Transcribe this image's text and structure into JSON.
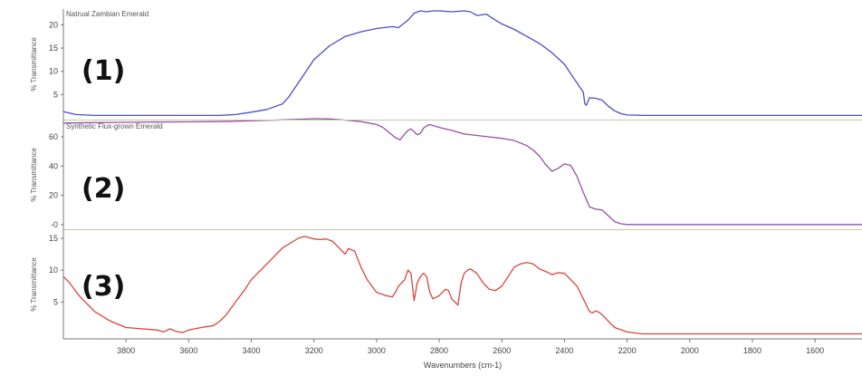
{
  "chart_data": [
    {
      "type": "line",
      "panel_label": "(1)",
      "title": "Natrual Zambian Emerald",
      "ylabel": "% Transmittance",
      "yticks": [
        5,
        10,
        15,
        20
      ],
      "ylim": [
        0,
        23
      ],
      "xlim": [
        4000,
        1450
      ],
      "series": [
        {
          "color": "#4c4ccc",
          "x": [
            4000,
            3960,
            3900,
            3800,
            3700,
            3600,
            3500,
            3450,
            3400,
            3350,
            3300,
            3280,
            3250,
            3200,
            3150,
            3100,
            3050,
            3000,
            2950,
            2930,
            2900,
            2880,
            2860,
            2840,
            2820,
            2800,
            2760,
            2720,
            2700,
            2680,
            2650,
            2620,
            2600,
            2560,
            2520,
            2480,
            2440,
            2400,
            2380,
            2360,
            2350,
            2340,
            2335,
            2330,
            2320,
            2300,
            2280,
            2260,
            2240,
            2220,
            2200,
            2150,
            2100,
            2000,
            1900,
            1800,
            1700,
            1600,
            1450
          ],
          "y": [
            1.3,
            0.7,
            0.5,
            0.5,
            0.5,
            0.5,
            0.5,
            0.7,
            1.2,
            1.8,
            3.0,
            4.5,
            7.5,
            12.5,
            15.5,
            17.5,
            18.5,
            19.2,
            19.6,
            19.4,
            21.0,
            22.5,
            23.0,
            22.8,
            23.0,
            23.0,
            22.8,
            23.0,
            22.8,
            22.0,
            22.3,
            21.0,
            20.2,
            19.0,
            17.5,
            16.0,
            14.0,
            11.5,
            9.5,
            7.5,
            6.5,
            5.5,
            3.0,
            2.7,
            4.3,
            4.2,
            3.8,
            2.5,
            1.5,
            0.9,
            0.6,
            0.5,
            0.5,
            0.5,
            0.5,
            0.5,
            0.5,
            0.5,
            0.5
          ]
        }
      ]
    },
    {
      "type": "line",
      "panel_label": "(2)",
      "title": "Synthetic Flux-grown Emerald",
      "ylabel": "% Transmittance",
      "yticks": [
        0,
        20,
        40,
        60
      ],
      "ytick_labels": [
        "-0",
        "20",
        "40",
        "60"
      ],
      "ylim": [
        -2,
        70
      ],
      "xlim": [
        4000,
        1450
      ],
      "series": [
        {
          "color": "#9a4ea6",
          "x": [
            4000,
            3900,
            3800,
            3700,
            3600,
            3500,
            3400,
            3300,
            3200,
            3150,
            3100,
            3050,
            3000,
            2980,
            2960,
            2940,
            2925,
            2910,
            2900,
            2890,
            2880,
            2870,
            2860,
            2850,
            2840,
            2830,
            2800,
            2760,
            2720,
            2680,
            2640,
            2600,
            2560,
            2520,
            2500,
            2480,
            2460,
            2440,
            2420,
            2400,
            2380,
            2360,
            2340,
            2320,
            2300,
            2280,
            2260,
            2240,
            2220,
            2200,
            2150,
            2100,
            2000,
            1900,
            1800,
            1700,
            1600,
            1450
          ],
          "y": [
            69.5,
            69.8,
            70.0,
            70.2,
            70.3,
            70.5,
            71.0,
            71.7,
            72.5,
            72.3,
            71.5,
            70.5,
            68.5,
            66.5,
            63.0,
            59.5,
            58.0,
            62.0,
            64.5,
            65.5,
            63.5,
            61.5,
            62.5,
            66.0,
            67.5,
            68.5,
            66.5,
            64.5,
            62.0,
            61.0,
            60.0,
            59.0,
            57.5,
            54.0,
            51.0,
            47.0,
            41.0,
            36.5,
            38.5,
            41.5,
            40.5,
            33.0,
            22.0,
            12.0,
            10.5,
            10.0,
            6.0,
            2.0,
            0.5,
            0.0,
            0.0,
            0.0,
            0.0,
            0.0,
            0.0,
            0.0,
            0.0,
            0.0
          ]
        }
      ]
    },
    {
      "type": "line",
      "panel_label": "(3)",
      "title": "",
      "ylabel": "% Transmittance",
      "yticks": [
        5,
        10,
        15
      ],
      "ylim": [
        -0.5,
        16
      ],
      "xlim": [
        4000,
        1450
      ],
      "xticks": [
        3800,
        3600,
        3400,
        3200,
        3000,
        2800,
        2600,
        2400,
        2200,
        2000,
        1800,
        1600
      ],
      "xlabel": "Wavenumbers (cm-1)",
      "series": [
        {
          "color": "#d9443c",
          "x": [
            4000,
            3980,
            3950,
            3900,
            3850,
            3800,
            3750,
            3700,
            3680,
            3660,
            3640,
            3620,
            3600,
            3560,
            3520,
            3500,
            3480,
            3450,
            3420,
            3400,
            3350,
            3300,
            3250,
            3230,
            3200,
            3180,
            3160,
            3140,
            3120,
            3100,
            3090,
            3070,
            3050,
            3030,
            3000,
            2970,
            2950,
            2940,
            2930,
            2910,
            2900,
            2890,
            2880,
            2870,
            2860,
            2850,
            2840,
            2830,
            2820,
            2800,
            2790,
            2780,
            2770,
            2760,
            2740,
            2730,
            2720,
            2710,
            2700,
            2680,
            2660,
            2640,
            2620,
            2600,
            2580,
            2560,
            2540,
            2520,
            2500,
            2480,
            2460,
            2440,
            2420,
            2400,
            2380,
            2360,
            2340,
            2320,
            2310,
            2300,
            2290,
            2280,
            2260,
            2240,
            2200,
            2150,
            2100,
            2000,
            1800,
            1600,
            1450
          ],
          "y": [
            9.0,
            8.0,
            6.0,
            3.5,
            2.0,
            1.0,
            0.8,
            0.6,
            0.3,
            0.8,
            0.4,
            0.2,
            0.6,
            1.0,
            1.3,
            2.0,
            3.0,
            5.0,
            7.0,
            8.5,
            11.0,
            13.5,
            15.0,
            15.3,
            14.9,
            14.8,
            14.9,
            14.5,
            13.5,
            12.5,
            13.4,
            13.0,
            10.5,
            8.5,
            6.5,
            6.0,
            5.8,
            6.5,
            7.5,
            8.5,
            10.0,
            9.5,
            5.2,
            8.0,
            9.0,
            9.5,
            9.0,
            6.5,
            5.5,
            6.0,
            6.5,
            7.0,
            6.8,
            5.5,
            4.5,
            8.0,
            9.5,
            10.0,
            10.2,
            9.5,
            8.0,
            7.0,
            6.8,
            7.5,
            9.0,
            10.5,
            11.0,
            11.2,
            11.0,
            10.2,
            9.8,
            9.3,
            9.6,
            9.5,
            8.5,
            7.5,
            5.5,
            3.5,
            3.3,
            3.6,
            3.4,
            3.0,
            2.0,
            1.0,
            0.3,
            0.0,
            0.0,
            0.0,
            0.0,
            0.0,
            0.0
          ]
        }
      ]
    }
  ]
}
